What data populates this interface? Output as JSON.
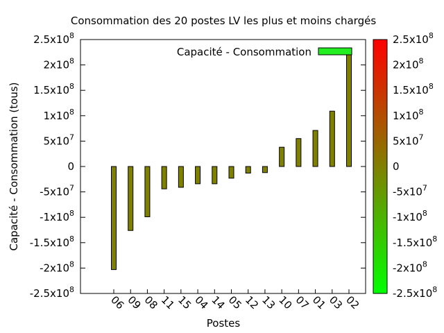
{
  "chart_data": {
    "type": "bar",
    "title": "Consommation des 20 postes LV les plus et moins chargés",
    "xlabel": "Postes",
    "ylabel": "Capacité - Consommation (tous)",
    "ylim": [
      -250000000,
      250000000
    ],
    "yticks": [
      {
        "value": 250000000,
        "mant": "2.5x10",
        "exp": "8"
      },
      {
        "value": 200000000,
        "mant": "2x10",
        "exp": "8"
      },
      {
        "value": 150000000,
        "mant": "1.5x10",
        "exp": "8"
      },
      {
        "value": 100000000,
        "mant": "1x10",
        "exp": "8"
      },
      {
        "value": 50000000,
        "mant": "5x10",
        "exp": "7"
      },
      {
        "value": 0,
        "mant": "0",
        "exp": ""
      },
      {
        "value": -50000000,
        "mant": "-5x10",
        "exp": "7"
      },
      {
        "value": -100000000,
        "mant": "-1x10",
        "exp": "8"
      },
      {
        "value": -150000000,
        "mant": "-1.5x10",
        "exp": "8"
      },
      {
        "value": -200000000,
        "mant": "-2x10",
        "exp": "8"
      },
      {
        "value": -250000000,
        "mant": "-2.5x10",
        "exp": "8"
      }
    ],
    "categories": [
      "06",
      "09",
      "08",
      "11",
      "15",
      "04",
      "14",
      "05",
      "12",
      "13",
      "10",
      "07",
      "01",
      "03",
      "02"
    ],
    "series": [
      {
        "name": "Capacité - Consommation",
        "values": [
          -203000000,
          -126000000,
          -99000000,
          -44000000,
          -41000000,
          -34000000,
          -34000000,
          -23000000,
          -13000000,
          -12000000,
          38000000,
          55000000,
          71000000,
          109000000,
          223000000
        ]
      }
    ],
    "bar_color": "#808000",
    "legend_swatch_color": "#22ee22",
    "legend_position": "top-right",
    "colorbar": {
      "range": [
        -250000000,
        250000000
      ],
      "colors": {
        "min": "#00ff00",
        "mid": "#808000",
        "max": "#ff0000"
      }
    },
    "grid": false
  }
}
